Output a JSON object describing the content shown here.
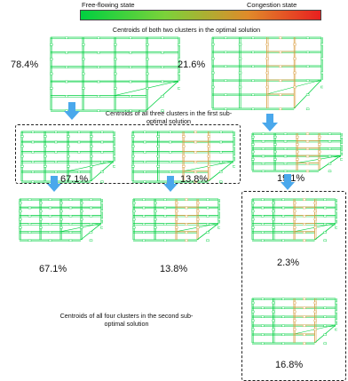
{
  "legend": {
    "left_label": "Free-flowing state",
    "right_label": "Congestion state",
    "colors": {
      "free": "#00d040",
      "congested": "#e82020"
    }
  },
  "captions": {
    "optimal": "Centroids of both two clusters  in the optimal solution",
    "first_suboptimal": "Centroids of all three clusters in the first sub-optimal solution",
    "second_suboptimal": "Centroids of all four clusters in the second sub-optimal solution"
  },
  "panels": {
    "opt_a": "78.4%",
    "opt_b": "21.6%",
    "s1_a": "67.1%",
    "s1_b": "13.8%",
    "s1_c": "19.1%",
    "s2_a": "67.1%",
    "s2_b": "13.8%",
    "s2_c": "2.3%",
    "s2_d": "16.8%"
  }
}
